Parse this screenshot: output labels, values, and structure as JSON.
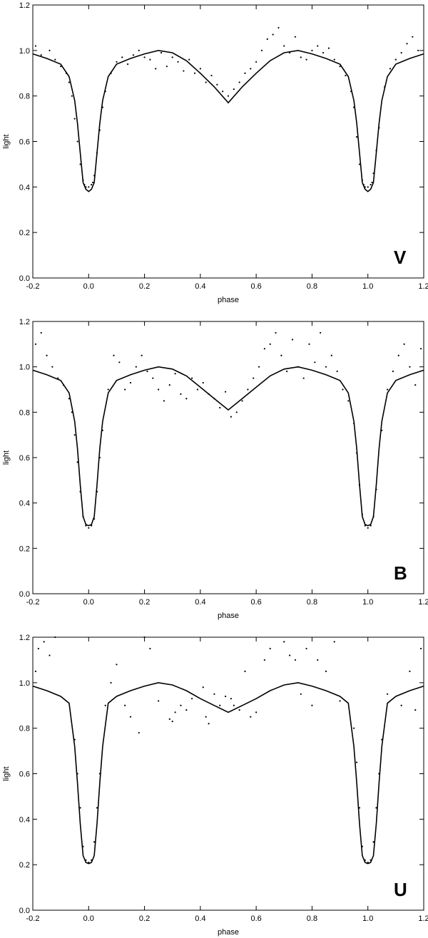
{
  "chart_data": [
    {
      "type": "scatter",
      "band_label": "V",
      "xlabel": "phase",
      "ylabel": "light",
      "xlim": [
        -0.2,
        1.2
      ],
      "ylim": [
        0.0,
        1.2
      ],
      "xticks": [
        "-0.2",
        "0.0",
        "0.2",
        "0.4",
        "0.6",
        "0.8",
        "1.0",
        "1.2"
      ],
      "yticks": [
        "0.0",
        "0.2",
        "0.4",
        "0.6",
        "0.8",
        "1.0",
        "1.2"
      ],
      "grid": false,
      "series": [
        {
          "kind": "model-line",
          "x": [
            -0.2,
            -0.15,
            -0.1,
            -0.07,
            -0.05,
            -0.04,
            -0.03,
            -0.02,
            -0.01,
            0.0,
            0.01,
            0.02,
            0.03,
            0.04,
            0.05,
            0.07,
            0.1,
            0.15,
            0.2,
            0.25,
            0.3,
            0.35,
            0.4,
            0.45,
            0.5,
            0.55,
            0.6,
            0.65,
            0.7,
            0.75,
            0.8,
            0.85,
            0.9,
            0.93,
            0.95,
            0.96,
            0.97,
            0.98,
            0.99,
            1.0,
            1.01,
            1.02,
            1.03,
            1.04,
            1.05,
            1.07,
            1.1,
            1.15,
            1.2
          ],
          "y": [
            0.985,
            0.965,
            0.94,
            0.885,
            0.78,
            0.68,
            0.55,
            0.42,
            0.39,
            0.38,
            0.39,
            0.42,
            0.55,
            0.68,
            0.78,
            0.885,
            0.94,
            0.965,
            0.985,
            1.0,
            0.99,
            0.955,
            0.9,
            0.84,
            0.77,
            0.84,
            0.9,
            0.955,
            0.99,
            1.0,
            0.985,
            0.965,
            0.94,
            0.885,
            0.78,
            0.68,
            0.55,
            0.42,
            0.39,
            0.38,
            0.39,
            0.42,
            0.55,
            0.68,
            0.78,
            0.885,
            0.94,
            0.965,
            0.985
          ]
        },
        {
          "kind": "observations",
          "x": [
            -0.19,
            -0.17,
            -0.14,
            -0.12,
            -0.1,
            -0.08,
            -0.07,
            -0.06,
            -0.05,
            -0.04,
            -0.03,
            -0.02,
            -0.015,
            -0.01,
            0.0,
            0.01,
            0.015,
            0.02,
            0.03,
            0.04,
            0.05,
            0.06,
            0.08,
            0.1,
            0.12,
            0.14,
            0.16,
            0.18,
            0.2,
            0.22,
            0.24,
            0.26,
            0.28,
            0.3,
            0.32,
            0.34,
            0.36,
            0.38,
            0.4,
            0.42,
            0.44,
            0.46,
            0.48,
            0.5,
            0.52,
            0.54,
            0.56,
            0.58,
            0.6,
            0.62,
            0.64,
            0.66,
            0.68,
            0.7,
            0.72,
            0.74,
            0.76,
            0.78,
            0.8,
            0.82,
            0.84,
            0.86,
            0.88,
            0.9,
            0.92,
            0.94,
            0.95,
            0.96,
            0.97,
            0.98,
            0.985,
            0.99,
            1.0,
            1.01,
            1.015,
            1.02,
            1.03,
            1.04,
            1.06,
            1.08,
            1.1,
            1.12,
            1.14,
            1.16,
            1.18
          ],
          "y": [
            1.02,
            0.98,
            1.0,
            0.96,
            0.93,
            0.9,
            0.86,
            0.8,
            0.7,
            0.6,
            0.5,
            0.43,
            0.41,
            0.4,
            0.4,
            0.41,
            0.42,
            0.45,
            0.55,
            0.65,
            0.75,
            0.82,
            0.9,
            0.95,
            0.97,
            0.94,
            0.98,
            1.0,
            0.97,
            0.96,
            0.92,
            0.99,
            0.93,
            0.97,
            0.95,
            0.91,
            0.96,
            0.9,
            0.92,
            0.86,
            0.89,
            0.85,
            0.82,
            0.8,
            0.83,
            0.86,
            0.9,
            0.92,
            0.95,
            1.0,
            1.05,
            1.07,
            1.1,
            1.02,
            0.99,
            1.06,
            0.97,
            0.96,
            1.0,
            1.02,
            0.99,
            1.01,
            0.96,
            0.93,
            0.89,
            0.82,
            0.75,
            0.62,
            0.5,
            0.43,
            0.41,
            0.4,
            0.4,
            0.41,
            0.42,
            0.46,
            0.56,
            0.66,
            0.84,
            0.92,
            0.96,
            0.99,
            1.03,
            1.06,
            1.0
          ]
        }
      ]
    },
    {
      "type": "scatter",
      "band_label": "B",
      "xlabel": "phase",
      "ylabel": "light",
      "xlim": [
        -0.2,
        1.2
      ],
      "ylim": [
        0.0,
        1.2
      ],
      "xticks": [
        "-0.2",
        "0.0",
        "0.2",
        "0.4",
        "0.6",
        "0.8",
        "1.0",
        "1.2"
      ],
      "yticks": [
        "0.0",
        "0.2",
        "0.4",
        "0.6",
        "0.8",
        "1.0",
        "1.2"
      ],
      "grid": false,
      "series": [
        {
          "kind": "model-line",
          "x": [
            -0.2,
            -0.15,
            -0.1,
            -0.07,
            -0.05,
            -0.04,
            -0.03,
            -0.02,
            -0.01,
            0.0,
            0.01,
            0.02,
            0.03,
            0.04,
            0.05,
            0.07,
            0.1,
            0.15,
            0.2,
            0.25,
            0.3,
            0.35,
            0.4,
            0.45,
            0.5,
            0.55,
            0.6,
            0.65,
            0.7,
            0.75,
            0.8,
            0.85,
            0.9,
            0.93,
            0.95,
            0.96,
            0.97,
            0.98,
            0.99,
            1.0,
            1.01,
            1.02,
            1.03,
            1.04,
            1.05,
            1.07,
            1.1,
            1.15,
            1.2
          ],
          "y": [
            0.985,
            0.965,
            0.94,
            0.885,
            0.76,
            0.64,
            0.48,
            0.34,
            0.305,
            0.3,
            0.305,
            0.34,
            0.48,
            0.64,
            0.76,
            0.885,
            0.94,
            0.965,
            0.985,
            1.0,
            0.99,
            0.96,
            0.91,
            0.86,
            0.81,
            0.86,
            0.91,
            0.96,
            0.99,
            1.0,
            0.985,
            0.965,
            0.94,
            0.885,
            0.76,
            0.64,
            0.48,
            0.34,
            0.305,
            0.3,
            0.305,
            0.34,
            0.48,
            0.64,
            0.76,
            0.885,
            0.94,
            0.965,
            0.985
          ]
        },
        {
          "kind": "observations",
          "x": [
            -0.19,
            -0.17,
            -0.15,
            -0.13,
            -0.11,
            -0.09,
            -0.07,
            -0.06,
            -0.05,
            -0.04,
            -0.03,
            -0.02,
            -0.01,
            0.0,
            0.01,
            0.02,
            0.03,
            0.04,
            0.05,
            0.07,
            0.09,
            0.11,
            0.13,
            0.15,
            0.17,
            0.19,
            0.21,
            0.23,
            0.25,
            0.27,
            0.29,
            0.31,
            0.33,
            0.35,
            0.37,
            0.39,
            0.41,
            0.43,
            0.45,
            0.47,
            0.49,
            0.51,
            0.53,
            0.55,
            0.57,
            0.59,
            0.61,
            0.63,
            0.65,
            0.67,
            0.69,
            0.71,
            0.73,
            0.75,
            0.77,
            0.79,
            0.81,
            0.83,
            0.85,
            0.87,
            0.89,
            0.91,
            0.93,
            0.95,
            0.96,
            0.97,
            0.98,
            0.99,
            1.0,
            1.01,
            1.02,
            1.03,
            1.05,
            1.07,
            1.09,
            1.11,
            1.13,
            1.15,
            1.17,
            1.19
          ],
          "y": [
            1.1,
            1.15,
            1.05,
            1.0,
            0.95,
            0.92,
            0.86,
            0.8,
            0.7,
            0.58,
            0.45,
            0.34,
            0.3,
            0.29,
            0.3,
            0.33,
            0.45,
            0.6,
            0.72,
            0.9,
            1.05,
            1.02,
            0.9,
            0.93,
            1.0,
            1.05,
            0.98,
            0.95,
            0.9,
            0.85,
            0.92,
            0.97,
            0.88,
            0.86,
            0.95,
            0.9,
            0.93,
            0.88,
            0.86,
            0.82,
            0.89,
            0.78,
            0.8,
            0.85,
            0.9,
            0.95,
            1.0,
            1.08,
            1.1,
            1.15,
            1.05,
            0.98,
            1.12,
            1.0,
            0.95,
            1.1,
            1.02,
            1.15,
            1.0,
            1.05,
            0.98,
            0.9,
            0.85,
            0.75,
            0.62,
            0.48,
            0.35,
            0.3,
            0.29,
            0.3,
            0.34,
            0.46,
            0.72,
            0.9,
            0.98,
            1.05,
            1.1,
            1.0,
            0.92,
            1.08
          ]
        }
      ]
    },
    {
      "type": "scatter",
      "band_label": "U",
      "xlabel": "phase",
      "ylabel": "light",
      "xlim": [
        -0.2,
        1.2
      ],
      "ylim": [
        0.0,
        1.2
      ],
      "xticks": [
        "-0.2",
        "0.0",
        "0.2",
        "0.4",
        "0.6",
        "0.8",
        "1.0",
        "1.2"
      ],
      "yticks": [
        "0.0",
        "0.2",
        "0.4",
        "0.6",
        "0.8",
        "1.0",
        "1.2"
      ],
      "grid": false,
      "series": [
        {
          "kind": "model-line",
          "x": [
            -0.2,
            -0.15,
            -0.1,
            -0.07,
            -0.05,
            -0.04,
            -0.03,
            -0.02,
            -0.01,
            0.0,
            0.01,
            0.02,
            0.03,
            0.04,
            0.05,
            0.07,
            0.1,
            0.15,
            0.2,
            0.25,
            0.3,
            0.35,
            0.4,
            0.45,
            0.5,
            0.55,
            0.6,
            0.65,
            0.7,
            0.75,
            0.8,
            0.85,
            0.9,
            0.93,
            0.95,
            0.96,
            0.97,
            0.98,
            0.99,
            1.0,
            1.01,
            1.02,
            1.03,
            1.04,
            1.05,
            1.07,
            1.1,
            1.15,
            1.2
          ],
          "y": [
            0.985,
            0.965,
            0.94,
            0.91,
            0.72,
            0.56,
            0.38,
            0.24,
            0.21,
            0.205,
            0.21,
            0.24,
            0.38,
            0.56,
            0.72,
            0.91,
            0.94,
            0.965,
            0.985,
            1.0,
            0.99,
            0.965,
            0.93,
            0.9,
            0.87,
            0.9,
            0.93,
            0.965,
            0.99,
            1.0,
            0.985,
            0.965,
            0.94,
            0.91,
            0.72,
            0.56,
            0.38,
            0.24,
            0.21,
            0.205,
            0.21,
            0.24,
            0.38,
            0.56,
            0.72,
            0.91,
            0.94,
            0.965,
            0.985
          ]
        },
        {
          "kind": "observations",
          "x": [
            -0.19,
            -0.18,
            -0.16,
            -0.14,
            -0.12,
            -0.05,
            -0.04,
            -0.03,
            -0.02,
            -0.01,
            0.0,
            0.01,
            0.02,
            0.03,
            0.04,
            0.06,
            0.08,
            0.1,
            0.13,
            0.15,
            0.18,
            0.2,
            0.22,
            0.25,
            0.29,
            0.3,
            0.31,
            0.33,
            0.35,
            0.37,
            0.41,
            0.42,
            0.43,
            0.45,
            0.47,
            0.49,
            0.51,
            0.52,
            0.54,
            0.56,
            0.58,
            0.6,
            0.63,
            0.65,
            0.7,
            0.72,
            0.74,
            0.76,
            0.78,
            0.8,
            0.82,
            0.85,
            0.88,
            0.9,
            0.95,
            0.96,
            0.97,
            0.98,
            0.99,
            1.0,
            1.01,
            1.02,
            1.03,
            1.04,
            1.05,
            1.07,
            1.12,
            1.15,
            1.17,
            1.19
          ],
          "y": [
            1.05,
            1.15,
            1.18,
            1.12,
            1.2,
            0.75,
            0.6,
            0.45,
            0.28,
            0.22,
            0.21,
            0.22,
            0.3,
            0.45,
            0.6,
            0.9,
            1.0,
            1.08,
            0.9,
            0.85,
            0.78,
            1.2,
            1.15,
            0.92,
            0.84,
            0.83,
            0.87,
            0.9,
            0.88,
            0.93,
            0.98,
            0.85,
            0.82,
            0.95,
            0.9,
            0.94,
            0.93,
            0.9,
            0.88,
            1.05,
            0.85,
            0.87,
            1.1,
            1.15,
            1.18,
            1.12,
            1.1,
            0.95,
            1.15,
            0.9,
            1.1,
            1.05,
            1.18,
            0.92,
            0.8,
            0.65,
            0.45,
            0.28,
            0.22,
            0.21,
            0.22,
            0.3,
            0.45,
            0.6,
            0.75,
            0.95,
            0.9,
            1.05,
            0.88,
            1.15
          ]
        }
      ]
    }
  ]
}
